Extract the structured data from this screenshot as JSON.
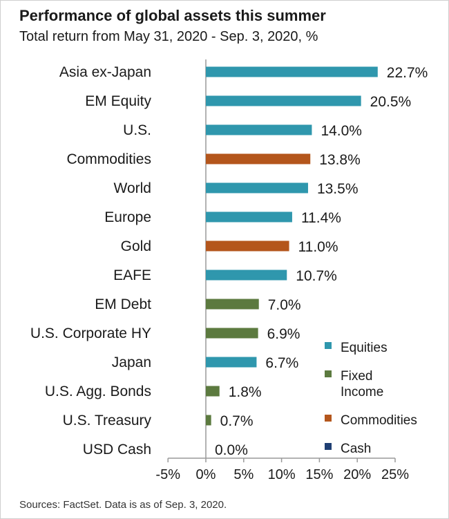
{
  "header": {
    "title": "Performance of global assets this summer",
    "subtitle": "Total return from May 31, 2020  - Sep. 3, 2020, %"
  },
  "footer": {
    "source": "Sources: FactSet. Data is as of Sep. 3, 2020."
  },
  "colors": {
    "Equities": "#2f97ad",
    "Fixed Income": "#5c7a3f",
    "Commodities": "#b4561c",
    "Cash": "#1f3f73",
    "axis": "#999999"
  },
  "chart_data": {
    "type": "bar",
    "orientation": "horizontal",
    "title": "Performance of global assets this summer",
    "subtitle": "Total return from May 31, 2020  - Sep. 3, 2020, %",
    "xlabel": "",
    "ylabel": "",
    "xlim": [
      -5,
      25
    ],
    "xticks": [
      -5,
      0,
      5,
      10,
      15,
      20,
      25
    ],
    "xtick_labels": [
      "-5%",
      "0%",
      "5%",
      "10%",
      "15%",
      "20%",
      "25%"
    ],
    "grid": false,
    "legend_placement": "bottom-right",
    "categories": [
      "Asia ex-Japan",
      "EM Equity",
      "U.S.",
      "Commodities",
      "World",
      "Europe",
      "Gold",
      "EAFE",
      "EM Debt",
      "U.S. Corporate HY",
      "Japan",
      "U.S. Agg. Bonds",
      "U.S. Treasury",
      "USD Cash"
    ],
    "values": [
      22.7,
      20.5,
      14.0,
      13.8,
      13.5,
      11.4,
      11.0,
      10.7,
      7.0,
      6.9,
      6.7,
      1.8,
      0.7,
      0.0
    ],
    "value_labels": [
      "22.7%",
      "20.5%",
      "14.0%",
      "13.8%",
      "13.5%",
      "11.4%",
      "11.0%",
      "10.7%",
      "7.0%",
      "6.9%",
      "6.7%",
      "1.8%",
      "0.7%",
      "0.0%"
    ],
    "groups": [
      "Equities",
      "Equities",
      "Equities",
      "Commodities",
      "Equities",
      "Equities",
      "Commodities",
      "Equities",
      "Fixed Income",
      "Fixed Income",
      "Equities",
      "Fixed Income",
      "Fixed Income",
      "Cash"
    ],
    "legend": [
      {
        "name": "Equities",
        "lines": [
          "Equities"
        ]
      },
      {
        "name": "Fixed Income",
        "lines": [
          "Fixed",
          "Income"
        ]
      },
      {
        "name": "Commodities",
        "lines": [
          "Commodities"
        ]
      },
      {
        "name": "Cash",
        "lines": [
          "Cash"
        ]
      }
    ]
  }
}
